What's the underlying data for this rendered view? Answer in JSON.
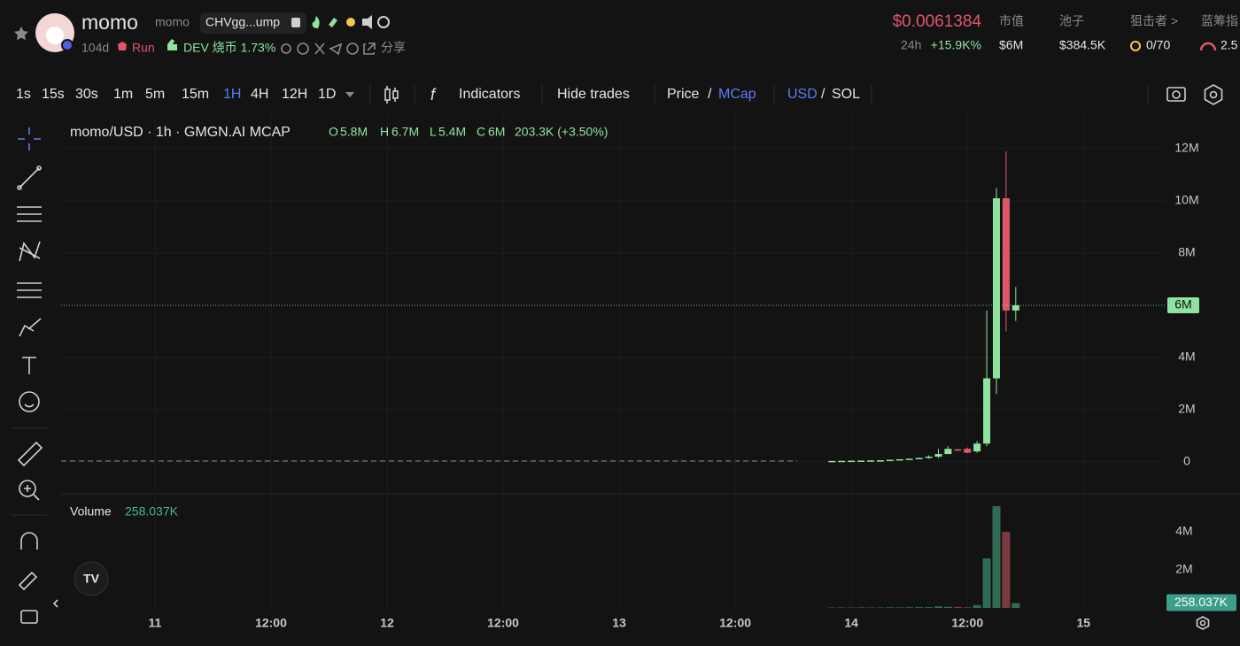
{
  "header": {
    "name": "momo",
    "symbol": "momo",
    "address": "CHVgg...ump",
    "age": "104d",
    "status": "Run",
    "dev": "DEV 烧币 1.73%",
    "share": "分享",
    "price": "$0.0061384",
    "change_period": "24h",
    "change": "+15.9K%",
    "stats": [
      {
        "label": "市值",
        "value": "$6M"
      },
      {
        "label": "池子",
        "value": "$384.5K"
      },
      {
        "label": "狙击者 >",
        "value": "0/70"
      },
      {
        "label": "蓝筹指",
        "value": "2.5"
      }
    ]
  },
  "toolbar": {
    "intervals": [
      "1s",
      "15s",
      "30s",
      "1m",
      "5m",
      "15m",
      "1H",
      "4H",
      "12H",
      "1D"
    ],
    "indicators": "Indicators",
    "hide_trades": "Hide trades",
    "price": "Price",
    "separator": "/",
    "mcap": "MCap",
    "usd": "USD",
    "sol": "SOL"
  },
  "chart": {
    "type": "candlestick",
    "title": "momo/USD · 1h · GMGN.AI MCAP",
    "legend": {
      "open_label": "O",
      "open": "5.8M",
      "high_label": "H",
      "high": "6.7M",
      "low_label": "L",
      "low": "5.4M",
      "close_label": "C",
      "close": "6M",
      "change": "203.3K (+3.50%)"
    },
    "up_color": "#8fe3a0",
    "down_color": "#e0576a",
    "x": [
      70,
      71,
      72,
      73,
      74,
      75,
      76,
      77,
      78,
      79,
      80,
      81,
      82,
      83,
      84,
      85,
      86,
      87,
      88,
      89
    ],
    "open": [
      30000,
      35000,
      40000,
      45000,
      50000,
      55000,
      60000,
      80000,
      100000,
      120000,
      150000,
      200000,
      300000,
      480000,
      500000,
      400000,
      700000,
      3200000,
      10100000,
      5800000
    ],
    "high": [
      40000,
      45000,
      50000,
      55000,
      60000,
      65000,
      85000,
      105000,
      125000,
      160000,
      250000,
      500000,
      600000,
      500000,
      550000,
      800000,
      5800000,
      10500000,
      11900000,
      6700000
    ],
    "low": [
      28000,
      33000,
      38000,
      43000,
      48000,
      53000,
      58000,
      78000,
      98000,
      115000,
      120000,
      150000,
      300000,
      420000,
      330000,
      350000,
      600000,
      2600000,
      5000000,
      5400000
    ],
    "close": [
      35000,
      40000,
      45000,
      50000,
      55000,
      60000,
      80000,
      100000,
      120000,
      150000,
      200000,
      300000,
      500000,
      450000,
      350000,
      700000,
      3200000,
      10100000,
      5800000,
      6000000
    ],
    "xlim": [
      -9.7,
      104.4
    ],
    "xticks": [
      {
        "value": 0,
        "label": "11"
      },
      {
        "value": 12,
        "label": "12:00"
      },
      {
        "value": 24,
        "label": "12"
      },
      {
        "value": 36,
        "label": "12:00"
      },
      {
        "value": 48,
        "label": "13"
      },
      {
        "value": 60,
        "label": "12:00"
      },
      {
        "value": 72,
        "label": "14"
      },
      {
        "value": 84,
        "label": "12:00"
      },
      {
        "value": 96,
        "label": "15"
      }
    ],
    "ylim": [
      -1190000,
      13290000
    ],
    "yticks": [
      0,
      {
        "value": 2000000,
        "label": "2M"
      },
      {
        "value": 4000000,
        "label": "4M"
      },
      {
        "value": 8000000,
        "label": "8M"
      },
      {
        "value": 10000000,
        "label": "10M"
      },
      {
        "value": 12000000,
        "label": "12M"
      }
    ],
    "volume": {
      "title": "Volume",
      "label": "258.037K",
      "values": [
        20000,
        22000,
        18000,
        25000,
        20000,
        24000,
        30000,
        28000,
        35000,
        40000,
        40000,
        80000,
        60000,
        50000,
        30000,
        150000,
        2600000,
        5350000,
        4000000,
        258037
      ],
      "ylim": [
        0,
        5900000
      ],
      "yticks": [
        {
          "value": 2000000,
          "label": "2M"
        },
        {
          "value": 4000000,
          "label": "4M"
        }
      ]
    }
  }
}
